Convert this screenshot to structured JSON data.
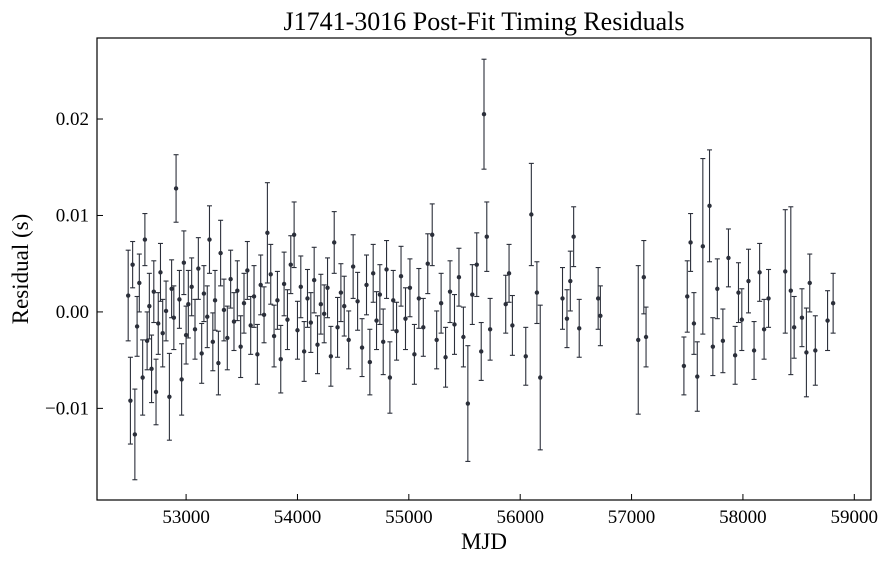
{
  "chart_data": {
    "type": "scatter",
    "title": "J1741-3016 Post-Fit Timing Residuals",
    "xlabel": "MJD",
    "ylabel": "Residual (s)",
    "xlim": [
      52200,
      59150
    ],
    "ylim": [
      -0.0195,
      0.0284
    ],
    "xticks": [
      53000,
      54000,
      55000,
      56000,
      57000,
      58000,
      59000
    ],
    "xtick_labels": [
      "53000",
      "54000",
      "55000",
      "56000",
      "57000",
      "58000",
      "59000"
    ],
    "yticks": [
      -0.01,
      0.0,
      0.01,
      0.02
    ],
    "ytick_labels": [
      "−0.01",
      "0.00",
      "0.01",
      "0.02"
    ],
    "grid": false,
    "marker_color": "#2b2f3a",
    "series": [
      {
        "points": [
          {
            "x": 52480,
            "y": 0.0017,
            "err": 0.0047
          },
          {
            "x": 52500,
            "y": -0.0092,
            "err": 0.0045
          },
          {
            "x": 52520,
            "y": 0.0049,
            "err": 0.0024
          },
          {
            "x": 52540,
            "y": -0.0127,
            "err": 0.0047
          },
          {
            "x": 52560,
            "y": -0.0015,
            "err": 0.0031
          },
          {
            "x": 52580,
            "y": 0.003,
            "err": 0.003
          },
          {
            "x": 52610,
            "y": -0.0068,
            "err": 0.0039
          },
          {
            "x": 52630,
            "y": 0.0075,
            "err": 0.0027
          },
          {
            "x": 52650,
            "y": -0.003,
            "err": 0.003
          },
          {
            "x": 52670,
            "y": 0.0006,
            "err": 0.0034
          },
          {
            "x": 52690,
            "y": -0.0059,
            "err": 0.0035
          },
          {
            "x": 52710,
            "y": 0.0021,
            "err": 0.0032
          },
          {
            "x": 52730,
            "y": -0.0083,
            "err": 0.0034
          },
          {
            "x": 52750,
            "y": -0.0012,
            "err": 0.0032
          },
          {
            "x": 52770,
            "y": 0.0041,
            "err": 0.003
          },
          {
            "x": 52790,
            "y": -0.0022,
            "err": 0.0035
          },
          {
            "x": 52820,
            "y": 0.0001,
            "err": 0.0031
          },
          {
            "x": 52850,
            "y": -0.0088,
            "err": 0.0045
          },
          {
            "x": 52870,
            "y": 0.0024,
            "err": 0.003
          },
          {
            "x": 52890,
            "y": -0.0006,
            "err": 0.0033
          },
          {
            "x": 52910,
            "y": 0.0128,
            "err": 0.0035
          },
          {
            "x": 52940,
            "y": 0.0013,
            "err": 0.003
          },
          {
            "x": 52960,
            "y": -0.007,
            "err": 0.0037
          },
          {
            "x": 52980,
            "y": 0.0051,
            "err": 0.0033
          },
          {
            "x": 53000,
            "y": -0.0024,
            "err": 0.003
          },
          {
            "x": 53020,
            "y": 0.0008,
            "err": 0.0035
          },
          {
            "x": 53050,
            "y": 0.0026,
            "err": 0.003
          },
          {
            "x": 53080,
            "y": -0.0018,
            "err": 0.0031
          },
          {
            "x": 53110,
            "y": 0.0045,
            "err": 0.0032
          },
          {
            "x": 53140,
            "y": -0.0043,
            "err": 0.0031
          },
          {
            "x": 53160,
            "y": 0.0019,
            "err": 0.0029
          },
          {
            "x": 53190,
            "y": -0.0005,
            "err": 0.0032
          },
          {
            "x": 53210,
            "y": 0.0075,
            "err": 0.0035
          },
          {
            "x": 53240,
            "y": -0.0031,
            "err": 0.003
          },
          {
            "x": 53260,
            "y": 0.0012,
            "err": 0.0031
          },
          {
            "x": 53290,
            "y": -0.0053,
            "err": 0.0033
          },
          {
            "x": 53310,
            "y": 0.0061,
            "err": 0.0034
          },
          {
            "x": 53340,
            "y": 0.0002,
            "err": 0.0032
          },
          {
            "x": 53370,
            "y": -0.0027,
            "err": 0.0033
          },
          {
            "x": 53400,
            "y": 0.0034,
            "err": 0.003
          },
          {
            "x": 53430,
            "y": -0.001,
            "err": 0.003
          },
          {
            "x": 53460,
            "y": 0.0022,
            "err": 0.0031
          },
          {
            "x": 53490,
            "y": -0.0036,
            "err": 0.0032
          },
          {
            "x": 53520,
            "y": 0.0009,
            "err": 0.0031
          },
          {
            "x": 53550,
            "y": 0.0043,
            "err": 0.003
          },
          {
            "x": 53580,
            "y": -0.0014,
            "err": 0.003
          },
          {
            "x": 53610,
            "y": 0.0016,
            "err": 0.0032
          },
          {
            "x": 53640,
            "y": -0.0044,
            "err": 0.0031
          },
          {
            "x": 53670,
            "y": 0.0028,
            "err": 0.0031
          },
          {
            "x": 53700,
            "y": -0.0003,
            "err": 0.0029
          },
          {
            "x": 53730,
            "y": 0.0082,
            "err": 0.0052
          },
          {
            "x": 53760,
            "y": 0.0039,
            "err": 0.0031
          },
          {
            "x": 53790,
            "y": -0.0025,
            "err": 0.0032
          },
          {
            "x": 53820,
            "y": 0.0012,
            "err": 0.003
          },
          {
            "x": 53850,
            "y": -0.0049,
            "err": 0.0035
          },
          {
            "x": 53880,
            "y": 0.0029,
            "err": 0.0033
          },
          {
            "x": 53910,
            "y": -0.0008,
            "err": 0.0031
          },
          {
            "x": 53940,
            "y": 0.0049,
            "err": 0.003
          },
          {
            "x": 53970,
            "y": 0.008,
            "err": 0.0034
          },
          {
            "x": 54000,
            "y": -0.0019,
            "err": 0.003
          },
          {
            "x": 54030,
            "y": 0.0026,
            "err": 0.0032
          },
          {
            "x": 54060,
            "y": -0.0041,
            "err": 0.0031
          },
          {
            "x": 54090,
            "y": 0.0014,
            "err": 0.003
          },
          {
            "x": 54120,
            "y": -0.0011,
            "err": 0.0031
          },
          {
            "x": 54150,
            "y": 0.0033,
            "err": 0.0034
          },
          {
            "x": 54180,
            "y": -0.0034,
            "err": 0.003
          },
          {
            "x": 54210,
            "y": 0.0008,
            "err": 0.0031
          },
          {
            "x": 54240,
            "y": -0.0002,
            "err": 0.003
          },
          {
            "x": 54270,
            "y": 0.0025,
            "err": 0.0031
          },
          {
            "x": 54300,
            "y": -0.0046,
            "err": 0.0031
          },
          {
            "x": 54330,
            "y": 0.0072,
            "err": 0.0032
          },
          {
            "x": 54360,
            "y": -0.0016,
            "err": 0.0031
          },
          {
            "x": 54390,
            "y": 0.002,
            "err": 0.003
          },
          {
            "x": 54420,
            "y": 0.0006,
            "err": 0.0031
          },
          {
            "x": 54460,
            "y": -0.0029,
            "err": 0.003
          },
          {
            "x": 54500,
            "y": 0.0047,
            "err": 0.0033
          },
          {
            "x": 54540,
            "y": 0.0011,
            "err": 0.003
          },
          {
            "x": 54580,
            "y": -0.0037,
            "err": 0.003
          },
          {
            "x": 54620,
            "y": 0.0028,
            "err": 0.0031
          },
          {
            "x": 54650,
            "y": -0.0052,
            "err": 0.0034
          },
          {
            "x": 54680,
            "y": 0.004,
            "err": 0.003
          },
          {
            "x": 54710,
            "y": -0.0009,
            "err": 0.003
          },
          {
            "x": 54740,
            "y": 0.0018,
            "err": 0.0031
          },
          {
            "x": 54770,
            "y": -0.0031,
            "err": 0.0034
          },
          {
            "x": 54800,
            "y": 0.0044,
            "err": 0.003
          },
          {
            "x": 54830,
            "y": -0.0068,
            "err": 0.0037
          },
          {
            "x": 54860,
            "y": 0.0012,
            "err": 0.0031
          },
          {
            "x": 54890,
            "y": -0.002,
            "err": 0.003
          },
          {
            "x": 54930,
            "y": 0.0037,
            "err": 0.0031
          },
          {
            "x": 54970,
            "y": -0.0007,
            "err": 0.0032
          },
          {
            "x": 55010,
            "y": 0.0025,
            "err": 0.003
          },
          {
            "x": 55050,
            "y": -0.0044,
            "err": 0.0031
          },
          {
            "x": 55090,
            "y": 0.0014,
            "err": 0.0031
          },
          {
            "x": 55130,
            "y": -0.0016,
            "err": 0.003
          },
          {
            "x": 55170,
            "y": 0.005,
            "err": 0.0031
          },
          {
            "x": 55210,
            "y": 0.008,
            "err": 0.0032
          },
          {
            "x": 55250,
            "y": -0.0029,
            "err": 0.003
          },
          {
            "x": 55290,
            "y": 0.0009,
            "err": 0.0031
          },
          {
            "x": 55330,
            "y": -0.0047,
            "err": 0.0031
          },
          {
            "x": 55370,
            "y": 0.0021,
            "err": 0.0032
          },
          {
            "x": 55410,
            "y": -0.0013,
            "err": 0.0031
          },
          {
            "x": 55450,
            "y": 0.0036,
            "err": 0.003
          },
          {
            "x": 55490,
            "y": -0.0026,
            "err": 0.0031
          },
          {
            "x": 55530,
            "y": -0.0095,
            "err": 0.006
          },
          {
            "x": 55570,
            "y": 0.0018,
            "err": 0.0031
          },
          {
            "x": 55610,
            "y": 0.0049,
            "err": 0.0033
          },
          {
            "x": 55650,
            "y": -0.0041,
            "err": 0.003
          },
          {
            "x": 55675,
            "y": 0.0205,
            "err": 0.0057
          },
          {
            "x": 55700,
            "y": 0.0078,
            "err": 0.0036
          },
          {
            "x": 55730,
            "y": -0.0018,
            "err": 0.0032
          },
          {
            "x": 55870,
            "y": 0.0008,
            "err": 0.003
          },
          {
            "x": 55900,
            "y": 0.004,
            "err": 0.003
          },
          {
            "x": 55930,
            "y": -0.0014,
            "err": 0.0031
          },
          {
            "x": 56050,
            "y": -0.0046,
            "err": 0.003
          },
          {
            "x": 56100,
            "y": 0.0101,
            "err": 0.0053
          },
          {
            "x": 56150,
            "y": 0.002,
            "err": 0.0032
          },
          {
            "x": 56180,
            "y": -0.0068,
            "err": 0.0075
          },
          {
            "x": 56380,
            "y": 0.0014,
            "err": 0.0032
          },
          {
            "x": 56420,
            "y": -0.0007,
            "err": 0.003
          },
          {
            "x": 56450,
            "y": 0.0032,
            "err": 0.0031
          },
          {
            "x": 56480,
            "y": 0.0078,
            "err": 0.0031
          },
          {
            "x": 56530,
            "y": -0.0017,
            "err": 0.003
          },
          {
            "x": 56700,
            "y": 0.0014,
            "err": 0.0032
          },
          {
            "x": 56720,
            "y": -0.0004,
            "err": 0.0031
          },
          {
            "x": 57060,
            "y": -0.0029,
            "err": 0.0077
          },
          {
            "x": 57110,
            "y": 0.0036,
            "err": 0.0038
          },
          {
            "x": 57130,
            "y": -0.0026,
            "err": 0.0031
          },
          {
            "x": 57470,
            "y": -0.0056,
            "err": 0.003
          },
          {
            "x": 57500,
            "y": 0.0016,
            "err": 0.0037
          },
          {
            "x": 57530,
            "y": 0.0072,
            "err": 0.003
          },
          {
            "x": 57560,
            "y": -0.0012,
            "err": 0.0032
          },
          {
            "x": 57590,
            "y": -0.0067,
            "err": 0.0036
          },
          {
            "x": 57640,
            "y": 0.0068,
            "err": 0.0091
          },
          {
            "x": 57700,
            "y": 0.011,
            "err": 0.0058
          },
          {
            "x": 57730,
            "y": -0.0036,
            "err": 0.003
          },
          {
            "x": 57770,
            "y": 0.0024,
            "err": 0.0031
          },
          {
            "x": 57820,
            "y": -0.003,
            "err": 0.0033
          },
          {
            "x": 57870,
            "y": 0.0056,
            "err": 0.003
          },
          {
            "x": 57930,
            "y": -0.0045,
            "err": 0.003
          },
          {
            "x": 57960,
            "y": 0.002,
            "err": 0.0031
          },
          {
            "x": 57990,
            "y": -0.0008,
            "err": 0.0032
          },
          {
            "x": 58050,
            "y": 0.0032,
            "err": 0.0033
          },
          {
            "x": 58100,
            "y": -0.004,
            "err": 0.003
          },
          {
            "x": 58150,
            "y": 0.0041,
            "err": 0.003
          },
          {
            "x": 58190,
            "y": -0.0018,
            "err": 0.0031
          },
          {
            "x": 58230,
            "y": 0.0014,
            "err": 0.003
          },
          {
            "x": 58380,
            "y": 0.0042,
            "err": 0.0064
          },
          {
            "x": 58430,
            "y": 0.0022,
            "err": 0.0087
          },
          {
            "x": 58460,
            "y": -0.0016,
            "err": 0.0032
          },
          {
            "x": 58530,
            "y": -0.0006,
            "err": 0.003
          },
          {
            "x": 58570,
            "y": -0.0042,
            "err": 0.0046
          },
          {
            "x": 58600,
            "y": 0.003,
            "err": 0.003
          },
          {
            "x": 58650,
            "y": -0.004,
            "err": 0.0036
          },
          {
            "x": 58760,
            "y": -0.0009,
            "err": 0.0031
          },
          {
            "x": 58810,
            "y": 0.0009,
            "err": 0.0031
          }
        ]
      }
    ]
  }
}
